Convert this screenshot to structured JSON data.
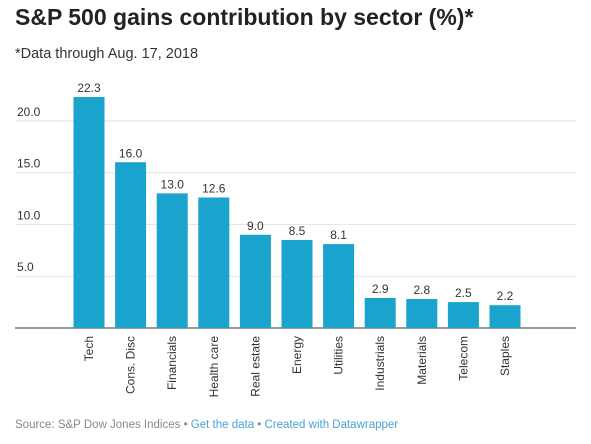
{
  "title": "S&P 500 gains contribution by sector (%)*",
  "subtitle": "*Data through Aug. 17, 2018",
  "footer": {
    "source": "Source: S&P Dow Jones Indices",
    "separator": "•",
    "get_data": "Get the data",
    "created_with": "Created with Datawrapper"
  },
  "colors": {
    "bar": "#1aa3cc",
    "grid": "#e3e3e3",
    "axis": "#333333"
  },
  "chart_data": {
    "type": "bar",
    "title": "S&P 500 gains contribution by sector (%)*",
    "subtitle": "*Data through Aug. 17, 2018",
    "categories": [
      "Tech",
      "Cons. Disc",
      "Financials",
      "Health care",
      "Real estate",
      "Energy",
      "Utilities",
      "Industrials",
      "Materials",
      "Telecom",
      "Staples"
    ],
    "values": [
      22.3,
      16.0,
      13.0,
      12.6,
      9.0,
      8.5,
      8.1,
      2.9,
      2.8,
      2.5,
      2.2
    ],
    "value_labels": [
      "22.3",
      "16.0",
      "13.0",
      "12.6",
      "9.0",
      "8.5",
      "8.1",
      "2.9",
      "2.8",
      "2.5",
      "2.2"
    ],
    "yticks": [
      5.0,
      10.0,
      15.0,
      20.0
    ],
    "ytick_labels": [
      "5.0",
      "10.0",
      "15.0",
      "20.0"
    ],
    "ylim": [
      0,
      22.3
    ],
    "grid": true,
    "legend": "none",
    "xlabel": "",
    "ylabel": ""
  }
}
